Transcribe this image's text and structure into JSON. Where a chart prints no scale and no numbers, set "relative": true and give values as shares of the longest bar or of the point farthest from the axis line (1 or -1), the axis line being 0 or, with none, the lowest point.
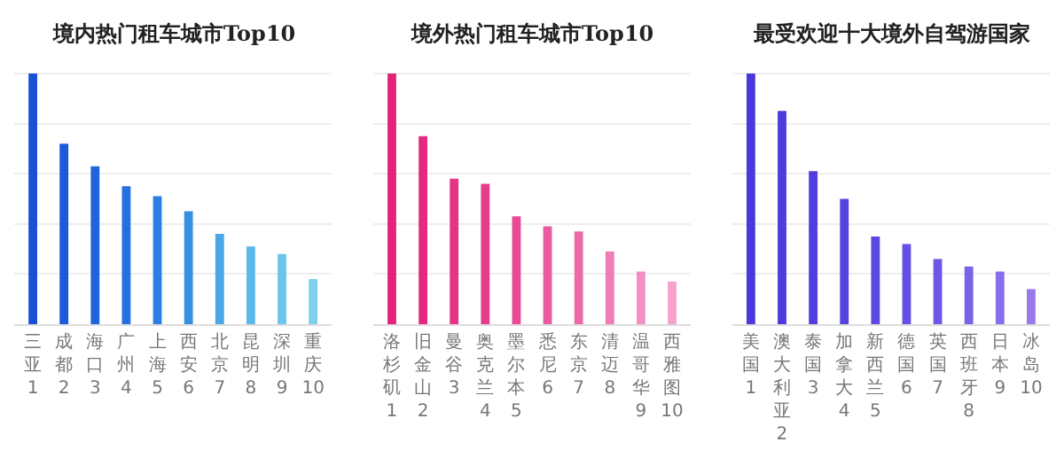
{
  "chart_data": [
    {
      "type": "bar",
      "title": "境内热门租车城市Top10",
      "relative": true,
      "grid": "y",
      "categories": [
        "三亚\n1",
        "成都\n2",
        "海口\n3",
        "广州\n4",
        "上海\n5",
        "西安\n6",
        "北京\n7",
        "昆明\n8",
        "深圳\n9",
        "重庆\n10"
      ],
      "values": [
        1,
        0.72,
        0.63,
        0.55,
        0.51,
        0.45,
        0.36,
        0.31,
        0.28,
        0.18
      ],
      "colors": [
        "#1a4fd6",
        "#1d5ad9",
        "#2064dc",
        "#2470de",
        "#2a80e0",
        "#3590e2",
        "#4aa6e6",
        "#5cb8ea",
        "#6cc4ec",
        "#7fd0ee"
      ]
    },
    {
      "type": "bar",
      "title": "境外热门租车城市Top10",
      "relative": true,
      "grid": "y",
      "categories": [
        "洛杉矶\n1",
        "旧金山\n2",
        "曼谷\n3",
        "奥克兰\n4",
        "墨尔本\n5",
        "悉尼\n6",
        "东京\n7",
        "清迈\n8",
        "温哥华\n9",
        "西雅图\n10"
      ],
      "values": [
        1,
        0.75,
        0.58,
        0.56,
        0.43,
        0.39,
        0.37,
        0.29,
        0.21,
        0.17
      ],
      "colors": [
        "#e3237a",
        "#e42a80",
        "#e53386",
        "#e63c8c",
        "#e84a96",
        "#ea5aa0",
        "#ec6aaa",
        "#ef7db6",
        "#f290c2",
        "#f5a2cc"
      ]
    },
    {
      "type": "bar",
      "title": "最受欢迎十大境外自驾游国家",
      "relative": true,
      "grid": "y",
      "categories": [
        "美国\n1",
        "澳大利亚\n2",
        "泰国\n3",
        "加拿大\n4",
        "新西兰\n5",
        "德国\n6",
        "英国\n7",
        "西班牙\n8",
        "日本\n9",
        "冰岛\n10"
      ],
      "values": [
        1,
        0.85,
        0.61,
        0.5,
        0.35,
        0.32,
        0.26,
        0.23,
        0.21,
        0.14
      ],
      "colors": [
        "#4a38dc",
        "#4d3cdd",
        "#503fde",
        "#5443df",
        "#5a48e0",
        "#6450e2",
        "#6e58e4",
        "#7a62e6",
        "#886ee8",
        "#987ae9"
      ]
    }
  ]
}
